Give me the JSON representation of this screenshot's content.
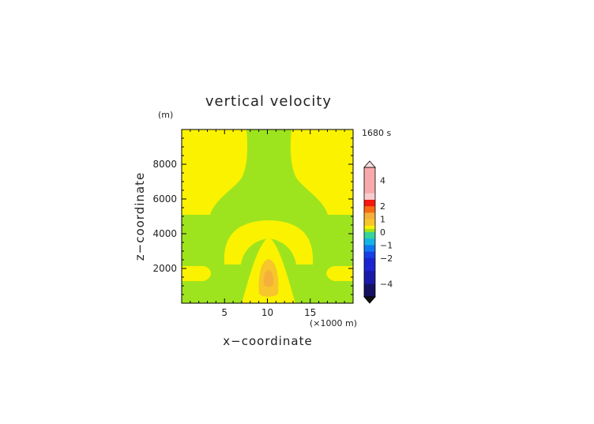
{
  "chart_data": {
    "type": "heatmap",
    "title": "vertical velocity",
    "xlabel": "x−coordinate",
    "ylabel": "z−coordinate",
    "x_unit": "(×1000 m)",
    "y_unit": "(m)",
    "time_label": "1680 s",
    "xlim": [
      0,
      20
    ],
    "ylim": [
      0,
      10000
    ],
    "x_ticks": [
      5,
      10,
      15
    ],
    "y_ticks": [
      2000,
      4000,
      6000,
      8000
    ],
    "colorbar": {
      "tick_labels": [
        "4",
        "2",
        "1",
        "0",
        "−1",
        "−2",
        "−4"
      ],
      "tick_values": [
        4,
        2,
        1,
        0,
        -1,
        -2,
        -4
      ],
      "extend": "both"
    },
    "regions": {
      "background": {
        "level": "0 to 0.25",
        "color": "#9ee41e"
      },
      "positive_weak": {
        "level": "0.25 to 0.5",
        "color": "#fbf200"
      },
      "positive_mid": {
        "level": "0.5 to 1",
        "color": "#f7c52c"
      },
      "positive_core": {
        "level": "1 to 1.5",
        "color": "#f4b03a"
      }
    }
  }
}
